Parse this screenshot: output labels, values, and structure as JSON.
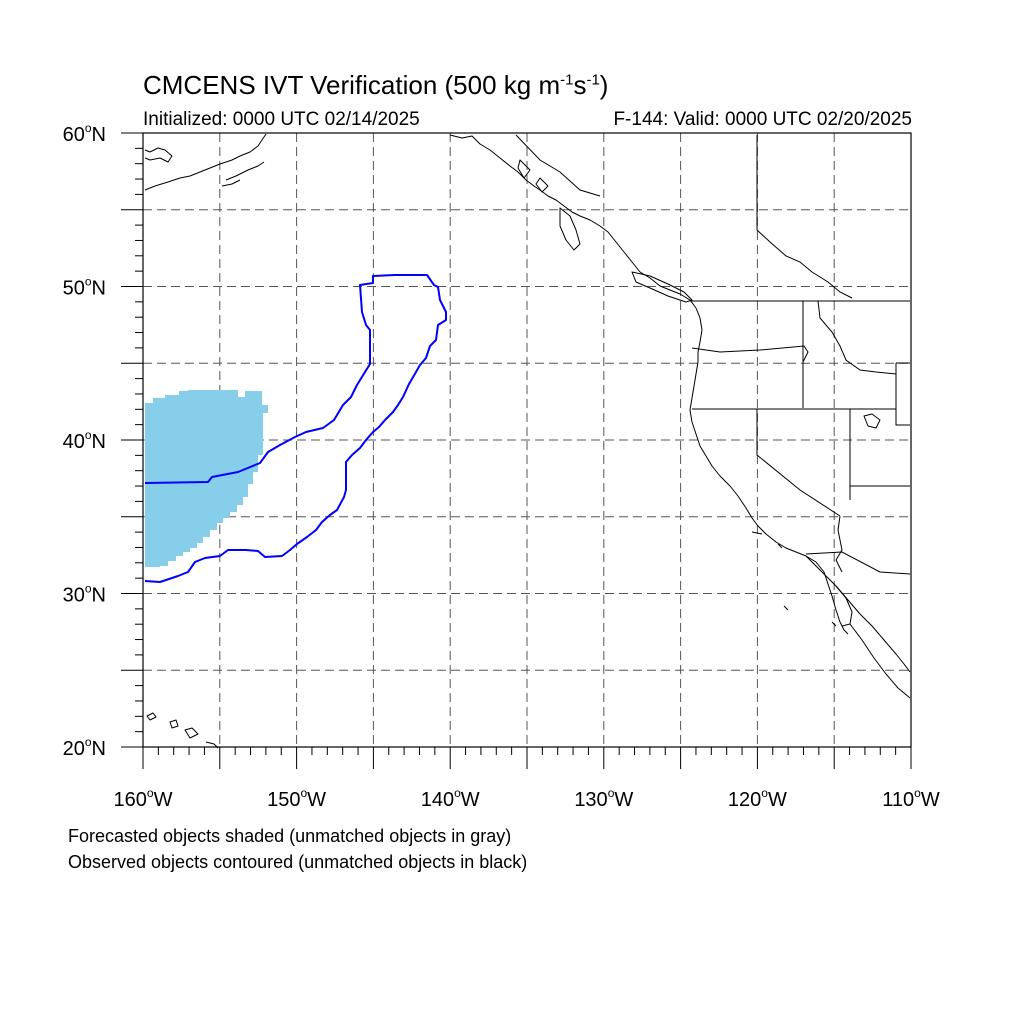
{
  "title": {
    "main": "CMCENS IVT Verification (500 kg m",
    "exp1": "-1",
    "mid": "s",
    "exp2": "-1",
    "close": ")"
  },
  "subtitle": {
    "left": "Initialized: 0000 UTC 02/14/2025",
    "right": "F-144: Valid: 0000 UTC 02/20/2025"
  },
  "map": {
    "projection": "cylindrical-equidistant",
    "lon_range": [
      -160,
      -110
    ],
    "lat_range": [
      20,
      60
    ],
    "grid": "dashed every 5 degrees",
    "lat_labels": [
      {
        "lat": 60,
        "deg": "60",
        "dir": "N"
      },
      {
        "lat": 50,
        "deg": "50",
        "dir": "N"
      },
      {
        "lat": 40,
        "deg": "40",
        "dir": "N"
      },
      {
        "lat": 30,
        "deg": "30",
        "dir": "N"
      },
      {
        "lat": 20,
        "deg": "20",
        "dir": "N"
      }
    ],
    "lon_labels": [
      {
        "lon": -160,
        "deg": "160",
        "dir": "W"
      },
      {
        "lon": -150,
        "deg": "150",
        "dir": "W"
      },
      {
        "lon": -140,
        "deg": "140",
        "dir": "W"
      },
      {
        "lon": -130,
        "deg": "130",
        "dir": "W"
      },
      {
        "lon": -120,
        "deg": "120",
        "dir": "W"
      },
      {
        "lon": -110,
        "deg": "110",
        "dir": "W"
      }
    ],
    "forecast_object_color": "#87ceeb",
    "observed_contour_color": "#0000ff",
    "coastline_color": "#000000"
  },
  "notes": {
    "line1": "Forecasted objects shaded (unmatched objects in gray)",
    "line2": "Observed objects contoured (unmatched objects in black)"
  }
}
